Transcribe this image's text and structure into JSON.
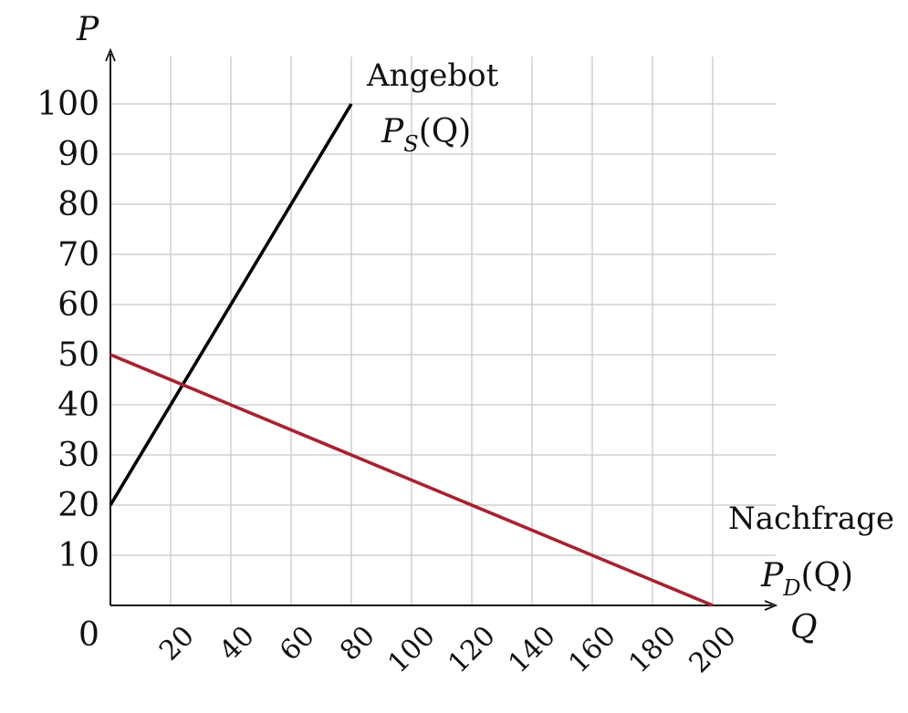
{
  "chart_data": {
    "type": "line",
    "xlabel": "Q",
    "ylabel": "P",
    "origin_label": "0",
    "xlim": [
      0,
      220
    ],
    "ylim": [
      0,
      105
    ],
    "x_ticks": [
      20,
      40,
      60,
      80,
      100,
      120,
      140,
      160,
      180,
      200
    ],
    "y_ticks": [
      10,
      20,
      30,
      40,
      50,
      60,
      70,
      80,
      90,
      100
    ],
    "grid": true,
    "series": [
      {
        "name": "Angebot",
        "formula_main": "P",
        "formula_sub": "S",
        "formula_tail": "(Q)",
        "color": "#000000",
        "points": [
          [
            0,
            20
          ],
          [
            80,
            100
          ]
        ]
      },
      {
        "name": "Nachfrage",
        "formula_main": "P",
        "formula_sub": "D",
        "formula_tail": "(Q)",
        "color": "#a8222f",
        "points": [
          [
            0,
            50
          ],
          [
            200,
            0
          ]
        ]
      }
    ]
  }
}
